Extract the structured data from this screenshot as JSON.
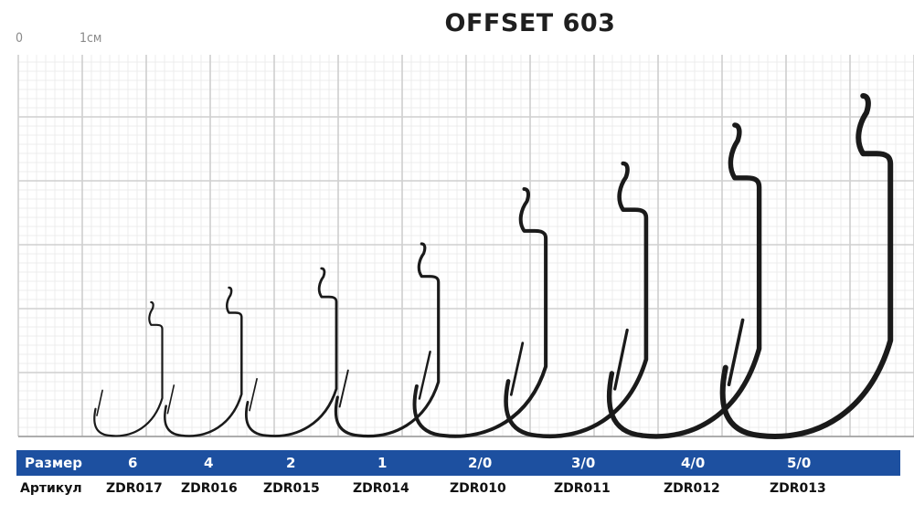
{
  "title": "OFFSET 603",
  "scale": {
    "zero_label": "0",
    "unit_label": "1см"
  },
  "table": {
    "size_header": "Размер",
    "article_header": "Артикул",
    "sizes": [
      "6",
      "4",
      "2",
      "1",
      "2/0",
      "3/0",
      "4/0",
      "5/0"
    ],
    "articles": [
      "ZDR017",
      "ZDR016",
      "ZDR015",
      "ZDR014",
      "ZDR010",
      "ZDR011",
      "ZDR012",
      "ZDR013"
    ]
  },
  "colors": {
    "bar": "#1d50a0",
    "hook": "#1a1a1a",
    "grid_major": "#cfcfcf",
    "grid_minor": "#ececec"
  }
}
